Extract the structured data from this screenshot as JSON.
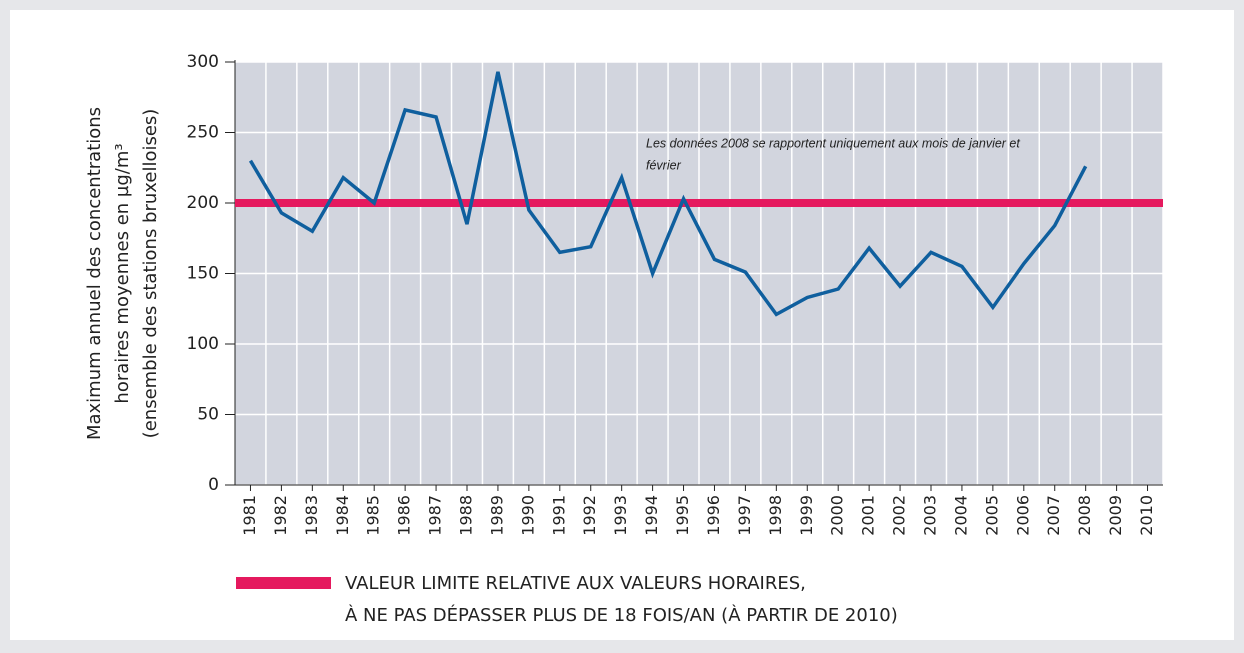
{
  "chart_data": {
    "type": "line",
    "y_label": [
      "Maximum annuel des concentrations",
      "horaires moyennes en µg/m³",
      "(ensemble des stations bruxelloises)"
    ],
    "annotation": [
      "Les données 2008 se rapportent uniquement aux mois de janvier et",
      "février"
    ],
    "categories": [
      "1981",
      "1982",
      "1983",
      "1984",
      "1985",
      "1986",
      "1987",
      "1988",
      "1989",
      "1990",
      "1991",
      "1992",
      "1993",
      "1994",
      "1995",
      "1996",
      "1997",
      "1998",
      "1999",
      "2000",
      "2001",
      "2002",
      "2003",
      "2004",
      "2005",
      "2006",
      "2007",
      "2008",
      "2009",
      "2010"
    ],
    "series": [
      {
        "color": "#0f5f9e",
        "values": [
          230,
          193,
          180,
          218,
          200,
          266,
          261,
          185,
          293,
          195,
          165,
          169,
          218,
          150,
          203,
          160,
          151,
          121,
          133,
          139,
          168,
          141,
          165,
          155,
          126,
          157,
          184,
          226,
          null,
          null
        ]
      }
    ],
    "threshold": {
      "value": 200,
      "color": "#e5195e",
      "label": [
        "VALEUR LIMITE RELATIVE AUX VALEURS HORAIRES,",
        "À NE PAS DÉPASSER PLUS DE 18 FOIS/AN (À PARTIR DE 2010)"
      ]
    },
    "ylim": [
      0,
      300
    ],
    "yticks": [
      0,
      50,
      100,
      150,
      200,
      250,
      300
    ],
    "grid": true
  }
}
